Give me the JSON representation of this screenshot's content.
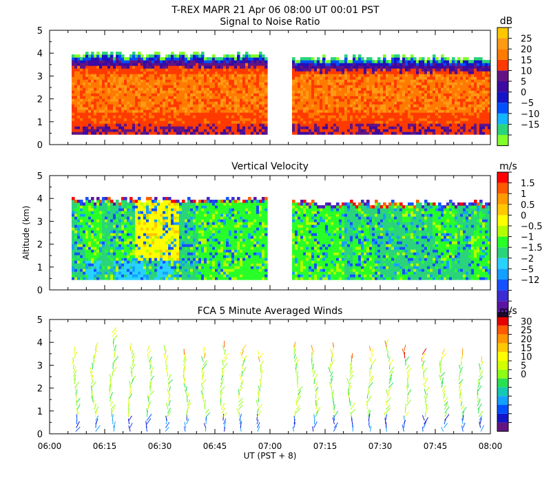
{
  "header": {
    "title": "T-REX  MAPR 21 Apr 06  08:00 UT  00:01  PST"
  },
  "x_axis": {
    "label": "UT  (PST + 8)",
    "ticks": [
      "06:00",
      "06:15",
      "06:30",
      "06:45",
      "07:00",
      "07:15",
      "07:30",
      "07:45",
      "08:00"
    ]
  },
  "colors": {
    "snr": [
      "#80ff2a",
      "#2ad47a",
      "#14b4ff",
      "#0050ff",
      "#1414c8",
      "#3c0aa0",
      "#641482",
      "#ff3a00",
      "#ff7a00",
      "#ff9a14",
      "#ffc800"
    ],
    "vv": [
      "#1e0a32",
      "#5a14a0",
      "#3c2ad2",
      "#1450ff",
      "#14a0ff",
      "#28d2ff",
      "#2ad47a",
      "#28ff28",
      "#b4ff00",
      "#ffff00",
      "#ffc800",
      "#ff9a00",
      "#ff5a00",
      "#ff0000"
    ],
    "wind": [
      "#641482",
      "#1414c8",
      "#0050ff",
      "#14a0ff",
      "#14c8b4",
      "#28e050",
      "#8cff14",
      "#d2ff00",
      "#ffff00",
      "#ffc800",
      "#ff9600",
      "#ff5a00",
      "#e60000"
    ]
  },
  "chart_data": [
    {
      "type": "heatmap",
      "title": "Signal to Noise Ratio",
      "xlabel": "UT  (PST + 8)",
      "ylabel": "",
      "xlim": [
        "06:00",
        "08:00"
      ],
      "ylim": [
        0,
        5
      ],
      "y_ticks": [
        "0",
        "1",
        "2",
        "3",
        "4",
        "5"
      ],
      "colorbar": {
        "unit": "dB",
        "tick_labels": [
          "25",
          "20",
          "15",
          "10",
          "5",
          "0",
          "−5",
          "−10",
          "−15"
        ],
        "range": [
          -17,
          29
        ]
      },
      "data_gap": [
        "06:59",
        "07:01"
      ],
      "summary_rows": [
        {
          "altitude_km": 0.4,
          "value_db": 8
        },
        {
          "altitude_km": 1.0,
          "value_db": 15
        },
        {
          "altitude_km": 2.0,
          "value_db": 18
        },
        {
          "altitude_km": 3.0,
          "value_db": 14
        },
        {
          "altitude_km": 3.6,
          "value_db": 10
        },
        {
          "altitude_km": 3.9,
          "value_db": 2
        },
        {
          "altitude_km": 4.0,
          "value_db": -10
        }
      ]
    },
    {
      "type": "heatmap",
      "title": "Vertical Velocity",
      "xlabel": "UT  (PST + 8)",
      "ylabel": "Altitude  (km)",
      "xlim": [
        "06:00",
        "08:00"
      ],
      "ylim": [
        0,
        5
      ],
      "y_ticks": [
        "0",
        "1",
        "2",
        "3",
        "4",
        "5"
      ],
      "colorbar": {
        "unit": "m/s",
        "tick_labels": [
          "1.5",
          "1",
          "0.5",
          "0",
          "−0.5",
          "−1",
          "−1.5",
          "−2",
          "−5",
          "−12"
        ]
      },
      "data_gap": [
        "06:59",
        "07:01"
      ],
      "summary_rows": [
        {
          "altitude_km": 0.5,
          "value_ms": -0.8
        },
        {
          "altitude_km": 1.5,
          "value_ms": -0.6
        },
        {
          "altitude_km": 2.5,
          "value_ms": -0.3
        },
        {
          "altitude_km": 3.5,
          "value_ms": -0.5
        }
      ]
    },
    {
      "type": "scatter",
      "title": "FCA 5 Minute Averaged Winds",
      "xlabel": "UT  (PST + 8)",
      "ylabel": "",
      "xlim": [
        "06:00",
        "08:00"
      ],
      "ylim": [
        0,
        5
      ],
      "y_ticks": [
        "0",
        "1",
        "2",
        "3",
        "4",
        "5"
      ],
      "colorbar": {
        "unit": "m/s",
        "tick_labels": [
          "30",
          "25",
          "20",
          "15",
          "10",
          "5",
          "0"
        ],
        "range": [
          0,
          32
        ]
      },
      "profile_times": [
        "06:07",
        "06:12",
        "06:17",
        "06:22",
        "06:27",
        "06:32",
        "06:37",
        "06:42",
        "06:47",
        "06:52",
        "06:57",
        "07:07",
        "07:12",
        "07:17",
        "07:22",
        "07:27",
        "07:32",
        "07:37",
        "07:42",
        "07:47",
        "07:52",
        "07:57"
      ],
      "profile_top_km": [
        3.7,
        3.9,
        4.5,
        3.9,
        3.7,
        3.7,
        3.6,
        3.7,
        3.9,
        3.7,
        3.5,
        3.9,
        3.7,
        3.8,
        3.4,
        3.7,
        4.1,
        3.7,
        3.5,
        3.6,
        3.5,
        3.3
      ]
    }
  ]
}
